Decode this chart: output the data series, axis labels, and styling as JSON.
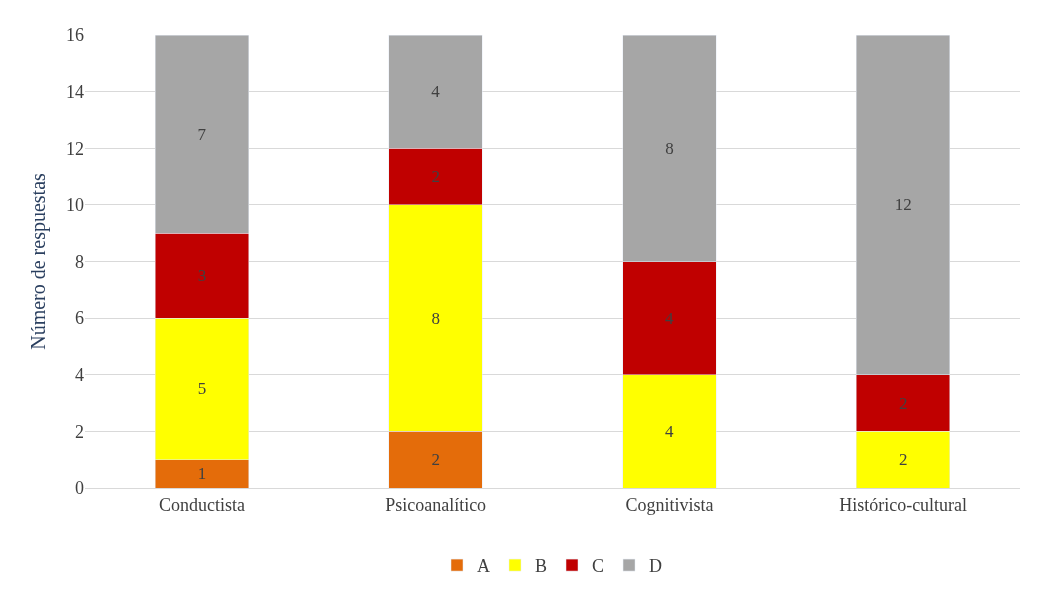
{
  "chart_data": {
    "type": "bar",
    "stacked": true,
    "ylabel": "Número de respuestas",
    "categories": [
      "Conductista",
      "Psicoanalítico",
      "Cognitivista",
      "Histórico-cultural"
    ],
    "series": [
      {
        "name": "A",
        "color": "#e46c0a",
        "values": [
          1,
          2,
          null,
          null
        ]
      },
      {
        "name": "B",
        "color": "#ffff00",
        "values": [
          5,
          8,
          4,
          2
        ]
      },
      {
        "name": "C",
        "color": "#c00000",
        "values": [
          3,
          2,
          4,
          2
        ]
      },
      {
        "name": "D",
        "color": "#a6a6a6",
        "values": [
          7,
          4,
          8,
          12
        ]
      }
    ],
    "ylim": [
      0,
      16
    ],
    "yticks": [
      0,
      2,
      4,
      6,
      8,
      10,
      12,
      14,
      16
    ],
    "grid": "y",
    "legend": "bottom",
    "data_labels": true
  }
}
